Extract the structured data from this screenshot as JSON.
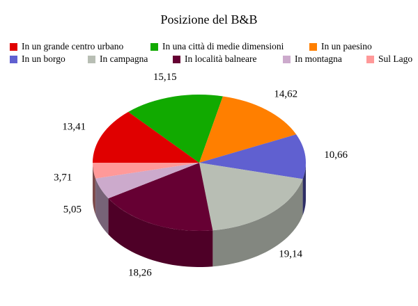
{
  "chart_data": {
    "type": "pie",
    "title": "Posizione del B&B",
    "legend_position": "top",
    "categories": [
      "In un grande centro urbano",
      "In una città di medie dimensioni",
      "In un paesino",
      "In un borgo",
      "In campagna",
      "In località balneare",
      "In montagna",
      "Sul Lago"
    ],
    "values": [
      13.41,
      15.15,
      14.62,
      10.66,
      19.14,
      18.26,
      5.05,
      3.71
    ],
    "value_labels": [
      "13,41",
      "15,15",
      "14,62",
      "10,66",
      "19,14",
      "18,26",
      "5,05",
      "3,71"
    ],
    "colors": [
      "#e00000",
      "#11aa00",
      "#ff7f00",
      "#6060d0",
      "#b8beb4",
      "#660033",
      "#ccaacc",
      "#ff9999"
    ],
    "style": "3d"
  }
}
